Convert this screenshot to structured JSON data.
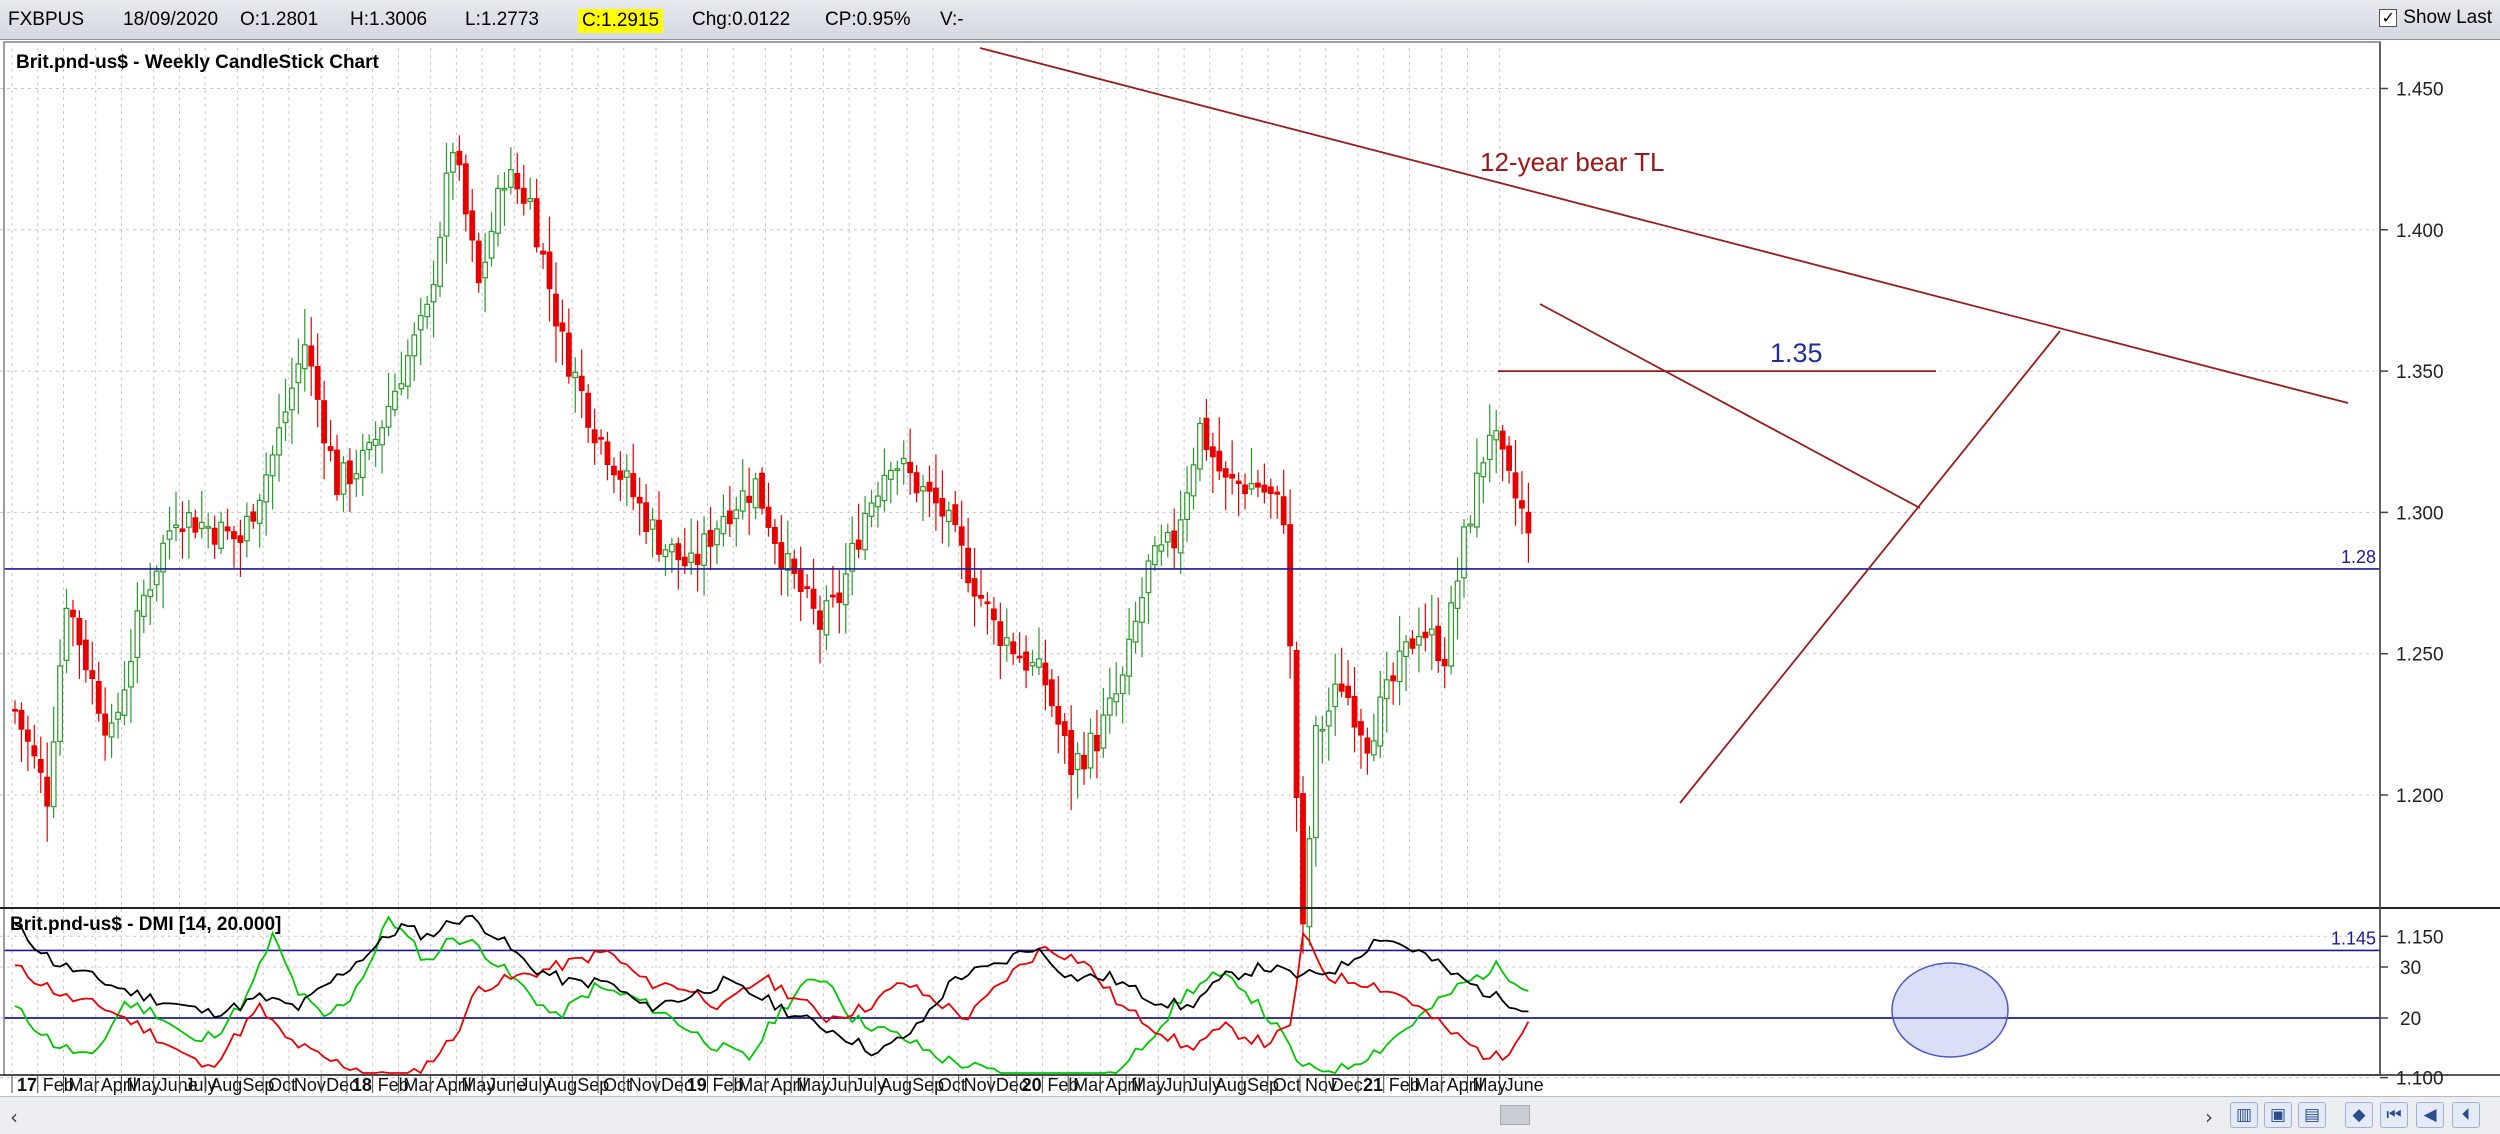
{
  "quote": {
    "symbol": "FXBPUS",
    "date": "18/09/2020",
    "open": "O:1.2801",
    "high": "H:1.3006",
    "low": "L:1.2773",
    "close": "C:1.2915",
    "change": "Chg:0.0122",
    "change_pct": "CP:0.95%",
    "volume": "V:-",
    "show_last_label": "Show Last",
    "show_last_checked": true
  },
  "chart_data": [
    {
      "type": "candlestick",
      "title": "Brit.pnd-us$ - Weekly CandleStick Chart",
      "ylim": [
        1.085,
        1.465
      ],
      "y_ticks": [
        "1.100",
        "1.150",
        "1.200",
        "1.250",
        "1.300",
        "1.350",
        "1.400",
        "1.450"
      ],
      "grid": true,
      "colors": {
        "up": "#2a9a2a",
        "down": "#e80000"
      },
      "anchors": [
        [
          0,
          1.23
        ],
        [
          5,
          1.2
        ],
        [
          8,
          1.27
        ],
        [
          12,
          1.24
        ],
        [
          15,
          1.22
        ],
        [
          20,
          1.27
        ],
        [
          25,
          1.3
        ],
        [
          35,
          1.29
        ],
        [
          40,
          1.32
        ],
        [
          45,
          1.36
        ],
        [
          50,
          1.31
        ],
        [
          55,
          1.32
        ],
        [
          60,
          1.35
        ],
        [
          64,
          1.37
        ],
        [
          68,
          1.43
        ],
        [
          72,
          1.38
        ],
        [
          76,
          1.42
        ],
        [
          80,
          1.41
        ],
        [
          85,
          1.36
        ],
        [
          90,
          1.33
        ],
        [
          95,
          1.31
        ],
        [
          100,
          1.29
        ],
        [
          105,
          1.28
        ],
        [
          110,
          1.3
        ],
        [
          115,
          1.31
        ],
        [
          120,
          1.28
        ],
        [
          125,
          1.26
        ],
        [
          128,
          1.27
        ],
        [
          132,
          1.3
        ],
        [
          136,
          1.32
        ],
        [
          140,
          1.31
        ],
        [
          144,
          1.3
        ],
        [
          148,
          1.28
        ],
        [
          152,
          1.26
        ],
        [
          156,
          1.25
        ],
        [
          160,
          1.24
        ],
        [
          164,
          1.21
        ],
        [
          168,
          1.22
        ],
        [
          172,
          1.24
        ],
        [
          176,
          1.28
        ],
        [
          180,
          1.29
        ],
        [
          184,
          1.33
        ],
        [
          188,
          1.31
        ],
        [
          193,
          1.31
        ],
        [
          197,
          1.3
        ],
        [
          200,
          1.15
        ],
        [
          202,
          1.22
        ],
        [
          206,
          1.24
        ],
        [
          210,
          1.22
        ],
        [
          214,
          1.24
        ],
        [
          218,
          1.26
        ],
        [
          222,
          1.25
        ],
        [
          225,
          1.29
        ],
        [
          229,
          1.33
        ],
        [
          232,
          1.31
        ],
        [
          234,
          1.3
        ],
        [
          235,
          1.29
        ]
      ],
      "levels": [
        {
          "label": "1.28",
          "value": 1.28
        },
        {
          "label": "1.145",
          "value": 1.145
        }
      ],
      "resistance": {
        "label": "1.35",
        "value": 1.35
      },
      "annotations": [
        {
          "text": "12-year bear TL"
        }
      ]
    },
    {
      "type": "line",
      "title": "Brit.pnd-us$ - DMI [14, 20.000]",
      "ylim": [
        8,
        42
      ],
      "y_ticks": [
        "30",
        "20"
      ],
      "threshold": 20,
      "series": [
        {
          "color": "#00c800",
          "anchors": [
            [
              0,
              22
            ],
            [
              6,
              15
            ],
            [
              12,
              12
            ],
            [
              17,
              23
            ],
            [
              22,
              21
            ],
            [
              28,
              15
            ],
            [
              32,
              18
            ],
            [
              36,
              24
            ],
            [
              40,
              36
            ],
            [
              44,
              25
            ],
            [
              48,
              20
            ],
            [
              52,
              24
            ],
            [
              56,
              33
            ],
            [
              58,
              40
            ],
            [
              60,
              37
            ],
            [
              64,
              31
            ],
            [
              68,
              36
            ],
            [
              72,
              34
            ],
            [
              78,
              27
            ],
            [
              84,
              20
            ],
            [
              90,
              26
            ],
            [
              96,
              24
            ],
            [
              102,
              20
            ],
            [
              108,
              15
            ],
            [
              114,
              12
            ],
            [
              118,
              20
            ],
            [
              122,
              26
            ],
            [
              126,
              28
            ],
            [
              130,
              20
            ],
            [
              134,
              18
            ],
            [
              138,
              16
            ],
            [
              144,
              12
            ],
            [
              150,
              10
            ],
            [
              156,
              8
            ],
            [
              160,
              6
            ],
            [
              166,
              5
            ],
            [
              172,
              10
            ],
            [
              176,
              16
            ],
            [
              182,
              25
            ],
            [
              186,
              28
            ],
            [
              190,
              27
            ],
            [
              196,
              18
            ],
            [
              200,
              10
            ],
            [
              206,
              10
            ],
            [
              212,
              14
            ],
            [
              218,
              20
            ],
            [
              224,
              26
            ],
            [
              230,
              30
            ],
            [
              235,
              26
            ]
          ]
        },
        {
          "color": "#ee0000",
          "anchors": [
            [
              0,
              30
            ],
            [
              8,
              24
            ],
            [
              14,
              22
            ],
            [
              20,
              18
            ],
            [
              26,
              13
            ],
            [
              30,
              10
            ],
            [
              34,
              16
            ],
            [
              38,
              22
            ],
            [
              42,
              16
            ],
            [
              48,
              12
            ],
            [
              56,
              9
            ],
            [
              60,
              7
            ],
            [
              64,
              11
            ],
            [
              68,
              16
            ],
            [
              72,
              26
            ],
            [
              78,
              28
            ],
            [
              84,
              30
            ],
            [
              92,
              33
            ],
            [
              98,
              27
            ],
            [
              104,
              26
            ],
            [
              110,
              22
            ],
            [
              116,
              28
            ],
            [
              120,
              25
            ],
            [
              126,
              20
            ],
            [
              132,
              22
            ],
            [
              138,
              27
            ],
            [
              142,
              24
            ],
            [
              148,
              20
            ],
            [
              154,
              28
            ],
            [
              160,
              34
            ],
            [
              166,
              31
            ],
            [
              172,
              22
            ],
            [
              176,
              19
            ],
            [
              182,
              14
            ],
            [
              188,
              18
            ],
            [
              194,
              15
            ],
            [
              198,
              18
            ],
            [
              200,
              36
            ],
            [
              204,
              28
            ],
            [
              210,
              27
            ],
            [
              216,
              24
            ],
            [
              222,
              18
            ],
            [
              228,
              13
            ],
            [
              231,
              12
            ],
            [
              235,
              20
            ]
          ]
        },
        {
          "color": "#000000",
          "anchors": [
            [
              0,
              38
            ],
            [
              6,
              31
            ],
            [
              12,
              28
            ],
            [
              18,
              25
            ],
            [
              24,
              23
            ],
            [
              30,
              21
            ],
            [
              34,
              22
            ],
            [
              38,
              24
            ],
            [
              44,
              22
            ],
            [
              50,
              28
            ],
            [
              56,
              34
            ],
            [
              60,
              38
            ],
            [
              64,
              36
            ],
            [
              68,
              39
            ],
            [
              70,
              40
            ],
            [
              74,
              37
            ],
            [
              80,
              30
            ],
            [
              86,
              27
            ],
            [
              92,
              27
            ],
            [
              98,
              22
            ],
            [
              104,
              24
            ],
            [
              110,
              27
            ],
            [
              116,
              24
            ],
            [
              122,
              20
            ],
            [
              128,
              17
            ],
            [
              134,
              13
            ],
            [
              140,
              18
            ],
            [
              146,
              28
            ],
            [
              152,
              30
            ],
            [
              158,
              34
            ],
            [
              164,
              28
            ],
            [
              170,
              28
            ],
            [
              176,
              24
            ],
            [
              182,
              22
            ],
            [
              188,
              28
            ],
            [
              194,
              30
            ],
            [
              200,
              28
            ],
            [
              206,
              30
            ],
            [
              212,
              36
            ],
            [
              218,
              33
            ],
            [
              224,
              28
            ],
            [
              230,
              24
            ],
            [
              235,
              22
            ]
          ]
        }
      ]
    }
  ],
  "x_axis": {
    "labels": [
      {
        "text": "17",
        "bold": true,
        "i": 0
      },
      {
        "text": "Feb",
        "bold": false,
        "i": 4
      },
      {
        "text": "Mar",
        "bold": false,
        "i": 8
      },
      {
        "text": "April",
        "bold": false,
        "i": 13
      },
      {
        "text": "May",
        "bold": false,
        "i": 17
      },
      {
        "text": "June",
        "bold": false,
        "i": 22
      },
      {
        "text": "July",
        "bold": false,
        "i": 26
      },
      {
        "text": "Aug",
        "bold": false,
        "i": 30
      },
      {
        "text": "Sep",
        "bold": false,
        "i": 35
      },
      {
        "text": "Oct",
        "bold": false,
        "i": 39
      },
      {
        "text": "Nov",
        "bold": false,
        "i": 43
      },
      {
        "text": "Dec",
        "bold": false,
        "i": 48
      },
      {
        "text": "18",
        "bold": true,
        "i": 52
      },
      {
        "text": "Feb",
        "bold": false,
        "i": 56
      },
      {
        "text": "Mar",
        "bold": false,
        "i": 60
      },
      {
        "text": "April",
        "bold": false,
        "i": 65
      },
      {
        "text": "May",
        "bold": false,
        "i": 69
      },
      {
        "text": "June",
        "bold": false,
        "i": 73
      },
      {
        "text": "July",
        "bold": false,
        "i": 78
      },
      {
        "text": "Aug",
        "bold": false,
        "i": 82
      },
      {
        "text": "Sep",
        "bold": false,
        "i": 87
      },
      {
        "text": "Oct",
        "bold": false,
        "i": 91
      },
      {
        "text": "Nov",
        "bold": false,
        "i": 95
      },
      {
        "text": "Dec",
        "bold": false,
        "i": 100
      },
      {
        "text": "19",
        "bold": true,
        "i": 104
      },
      {
        "text": "Feb",
        "bold": false,
        "i": 108
      },
      {
        "text": "Mar",
        "bold": false,
        "i": 112
      },
      {
        "text": "April",
        "bold": false,
        "i": 117
      },
      {
        "text": "May",
        "bold": false,
        "i": 121
      },
      {
        "text": "Jun",
        "bold": false,
        "i": 126
      },
      {
        "text": "July",
        "bold": false,
        "i": 130
      },
      {
        "text": "Aug",
        "bold": false,
        "i": 134
      },
      {
        "text": "Sep",
        "bold": false,
        "i": 139
      },
      {
        "text": "Oct",
        "bold": false,
        "i": 143
      },
      {
        "text": "Nov",
        "bold": false,
        "i": 147
      },
      {
        "text": "Dec",
        "bold": false,
        "i": 152
      },
      {
        "text": "20",
        "bold": true,
        "i": 156
      },
      {
        "text": "Feb",
        "bold": false,
        "i": 160
      },
      {
        "text": "Mar",
        "bold": false,
        "i": 164
      },
      {
        "text": "April",
        "bold": false,
        "i": 169
      },
      {
        "text": "May",
        "bold": false,
        "i": 173
      },
      {
        "text": "Jun",
        "bold": false,
        "i": 178
      },
      {
        "text": "July",
        "bold": false,
        "i": 182
      },
      {
        "text": "Aug",
        "bold": false,
        "i": 186
      },
      {
        "text": "Sep",
        "bold": false,
        "i": 191
      },
      {
        "text": "Oct",
        "bold": false,
        "i": 195
      },
      {
        "text": "Nov",
        "bold": false,
        "i": 200
      },
      {
        "text": "Dec",
        "bold": false,
        "i": 204
      },
      {
        "text": "21",
        "bold": true,
        "i": 209
      },
      {
        "text": "Feb",
        "bold": false,
        "i": 213
      },
      {
        "text": "Mar",
        "bold": false,
        "i": 217
      },
      {
        "text": "April",
        "bold": false,
        "i": 222
      },
      {
        "text": "May",
        "bold": false,
        "i": 226
      },
      {
        "text": "June",
        "bold": false,
        "i": 231
      }
    ]
  },
  "colors": {
    "accent_line": "#1a1a9a",
    "trendline": "#9b1b1b",
    "grid": "#c8c8c8",
    "highlight": "#ffff00"
  },
  "toolbar": {
    "icons": [
      "bar-chart-icon",
      "save-icon",
      "print-icon",
      "zoom-fit-icon",
      "first-page-icon",
      "prev-page-icon",
      "next-page-icon"
    ]
  }
}
